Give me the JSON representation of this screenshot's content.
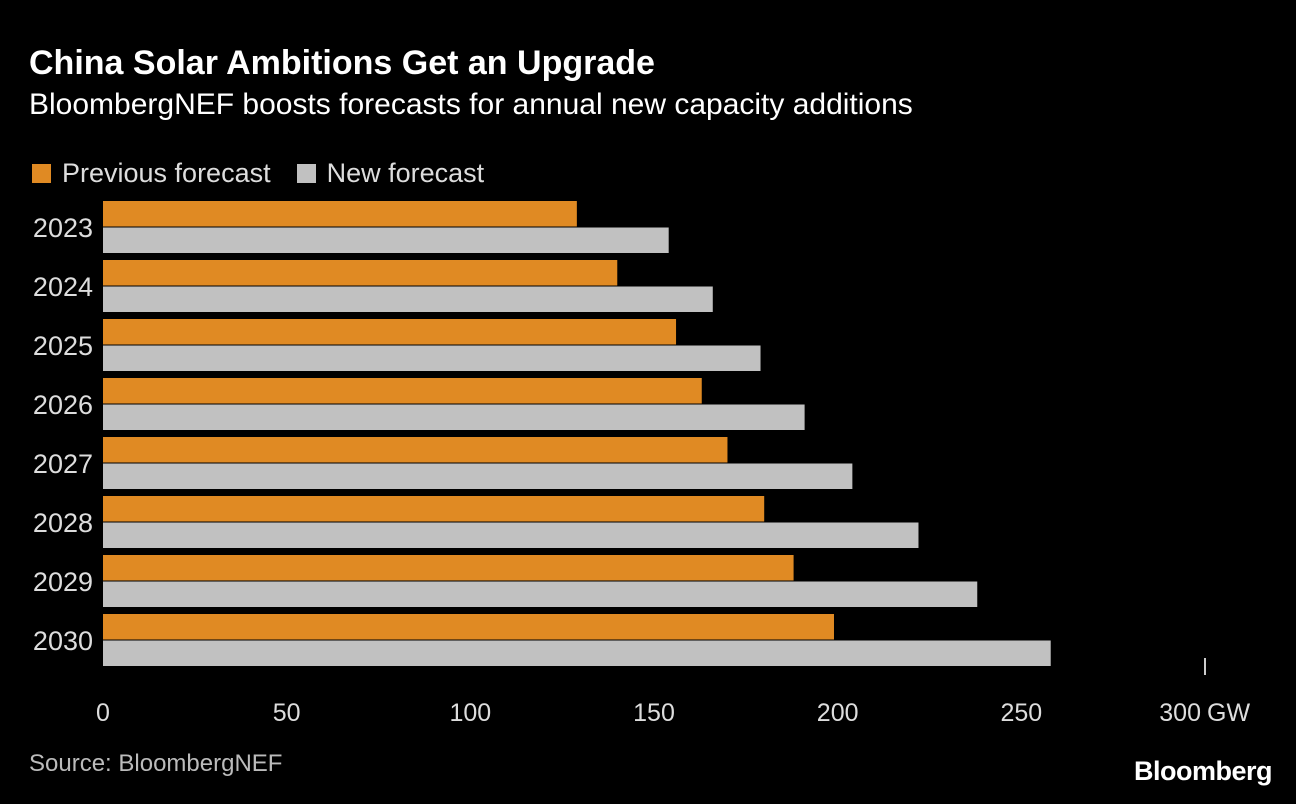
{
  "title": "China Solar Ambitions Get an Upgrade",
  "subtitle": "BloombergNEF boosts forecasts for annual new capacity additions",
  "source": "Source: BloombergNEF",
  "logo": "Bloomberg",
  "colors": {
    "previous": "#e08a23",
    "new": "#c1c1c1"
  },
  "chart_data": {
    "type": "bar",
    "orientation": "horizontal",
    "categories": [
      "2023",
      "2024",
      "2025",
      "2026",
      "2027",
      "2028",
      "2029",
      "2030"
    ],
    "series": [
      {
        "name": "Previous forecast",
        "values": [
          129,
          140,
          156,
          163,
          170,
          180,
          188,
          199
        ]
      },
      {
        "name": "New forecast",
        "values": [
          154,
          166,
          179,
          191,
          204,
          222,
          238,
          258
        ]
      }
    ],
    "xlim": [
      0,
      300
    ],
    "xticks": [
      "0",
      "50",
      "100",
      "150",
      "200",
      "250",
      "300"
    ],
    "xunit": "GW",
    "legend": "top-left"
  }
}
